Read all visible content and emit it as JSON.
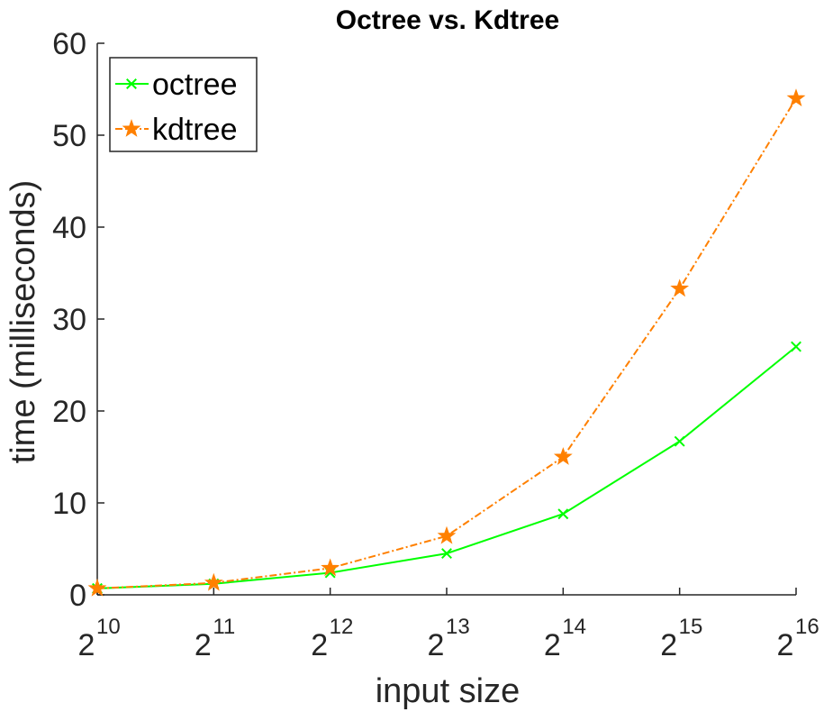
{
  "chart_data": {
    "type": "line",
    "title": "Octree vs. Kdtree",
    "xlabel": "input size",
    "ylabel": "time (milliseconds)",
    "x_scale": "log2",
    "x": [
      1024,
      2048,
      4096,
      8192,
      16384,
      32768,
      65536
    ],
    "x_tick_labels": [
      {
        "base": "2",
        "exp": "10"
      },
      {
        "base": "2",
        "exp": "11"
      },
      {
        "base": "2",
        "exp": "12"
      },
      {
        "base": "2",
        "exp": "13"
      },
      {
        "base": "2",
        "exp": "14"
      },
      {
        "base": "2",
        "exp": "15"
      },
      {
        "base": "2",
        "exp": "16"
      }
    ],
    "y_ticks": [
      "0",
      "10",
      "20",
      "30",
      "40",
      "50",
      "60"
    ],
    "ylim": [
      0,
      60
    ],
    "grid": false,
    "legend_position": "top-left",
    "series": [
      {
        "name": "octree",
        "color": "#00ff00",
        "marker": "x-cross",
        "line_style": "solid",
        "values": [
          0.7,
          1.2,
          2.4,
          4.5,
          8.8,
          16.7,
          27.0
        ]
      },
      {
        "name": "kdtree",
        "color": "#ff8000",
        "marker": "star",
        "line_style": "dash-dot",
        "values": [
          0.7,
          1.3,
          2.9,
          6.4,
          15.0,
          33.3,
          54.0
        ]
      }
    ]
  }
}
